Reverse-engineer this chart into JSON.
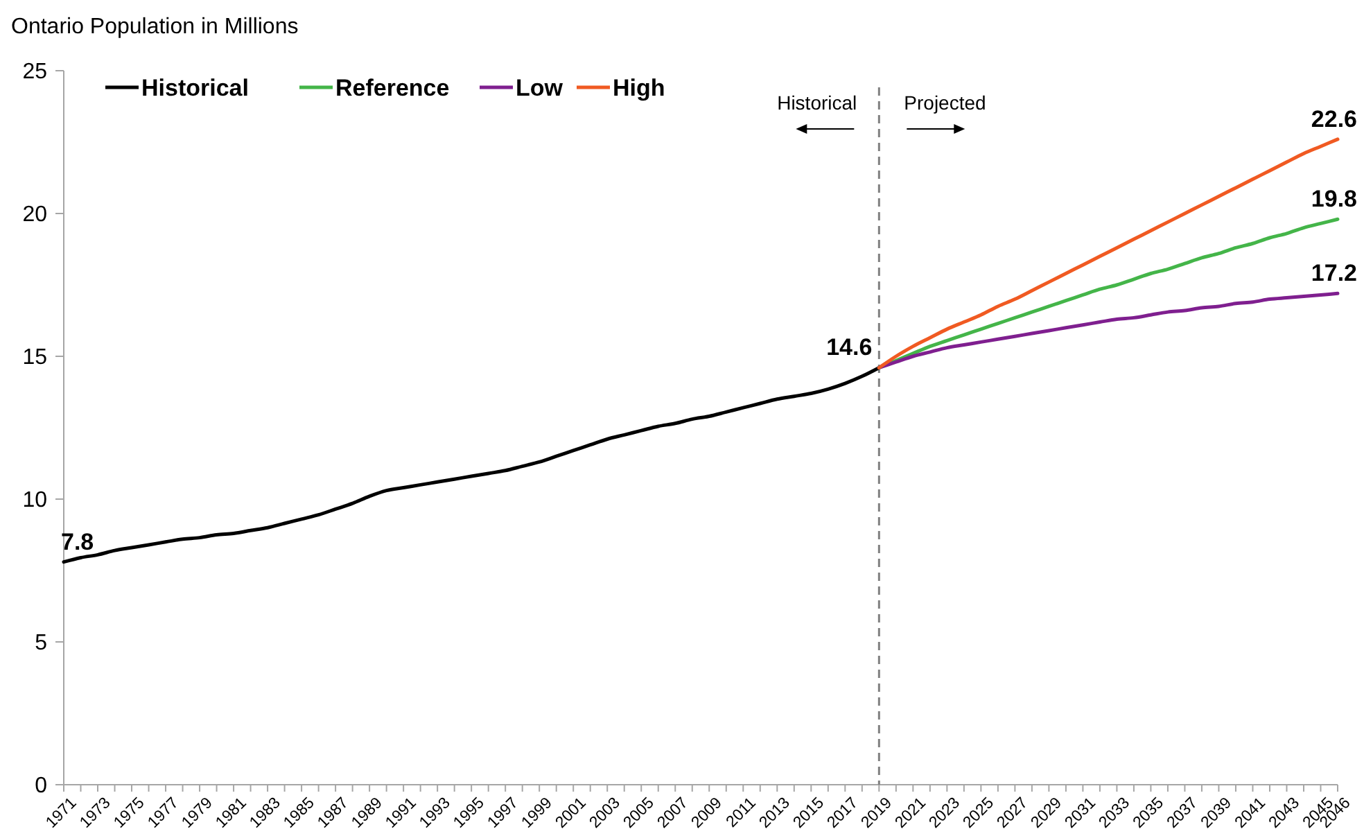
{
  "chart_data": {
    "type": "line",
    "title": "Ontario Population in Millions",
    "categories": [
      "1971",
      null,
      "1973",
      null,
      "1975",
      null,
      "1977",
      null,
      "1979",
      null,
      "1981",
      null,
      "1983",
      null,
      "1985",
      null,
      "1987",
      null,
      "1989",
      null,
      "1991",
      null,
      "1993",
      null,
      "1995",
      null,
      "1997",
      null,
      "1999",
      null,
      "2001",
      null,
      "2003",
      null,
      "2005",
      null,
      "2007",
      null,
      "2009",
      null,
      "2011",
      null,
      "2013",
      null,
      "2015",
      null,
      "2017",
      null,
      "2019",
      null,
      "2021",
      null,
      "2023",
      null,
      "2025",
      null,
      "2027",
      null,
      "2029",
      null,
      "2031",
      null,
      "2033",
      null,
      "2035",
      null,
      "2037",
      null,
      "2039",
      null,
      "2041",
      null,
      "2043",
      null,
      "2045",
      "2046"
    ],
    "series": [
      {
        "name": "Historical",
        "color": "#000000",
        "values": [
          7.8,
          7.95,
          8.05,
          8.2,
          8.3,
          8.4,
          8.5,
          8.6,
          8.65,
          8.75,
          8.8,
          8.9,
          9.0,
          9.15,
          9.3,
          9.45,
          9.65,
          9.85,
          10.1,
          10.3,
          10.4,
          10.5,
          10.6,
          10.7,
          10.8,
          10.9,
          11.0,
          11.15,
          11.3,
          11.5,
          11.7,
          11.9,
          12.1,
          12.25,
          12.4,
          12.55,
          12.65,
          12.8,
          12.9,
          13.05,
          13.2,
          13.35,
          13.5,
          13.6,
          13.7,
          13.85,
          14.05,
          14.3,
          14.6,
          null,
          null,
          null,
          null,
          null,
          null,
          null,
          null,
          null,
          null,
          null,
          null,
          null,
          null,
          null,
          null,
          null,
          null,
          null,
          null,
          null,
          null,
          null,
          null,
          null,
          null,
          null
        ],
        "value_labels": [
          "7.8",
          null,
          null,
          null,
          null,
          null,
          null,
          null,
          null,
          null,
          null,
          null,
          null,
          null,
          null,
          null,
          null,
          null,
          null,
          null,
          null,
          null,
          null,
          null,
          null,
          null,
          null,
          null,
          null,
          null,
          null,
          null,
          null,
          null,
          null,
          null,
          null,
          null,
          null,
          null,
          null,
          null,
          null,
          null,
          null,
          null,
          null,
          null,
          "14.6",
          null,
          null,
          null,
          null,
          null,
          null,
          null,
          null,
          null,
          null,
          null,
          null,
          null,
          null,
          null,
          null,
          null,
          null,
          null,
          null,
          null,
          null,
          null,
          null,
          null,
          null,
          null
        ]
      },
      {
        "name": "Reference",
        "color": "#44b549",
        "values": [
          null,
          null,
          null,
          null,
          null,
          null,
          null,
          null,
          null,
          null,
          null,
          null,
          null,
          null,
          null,
          null,
          null,
          null,
          null,
          null,
          null,
          null,
          null,
          null,
          null,
          null,
          null,
          null,
          null,
          null,
          null,
          null,
          null,
          null,
          null,
          null,
          null,
          null,
          null,
          null,
          null,
          null,
          null,
          null,
          null,
          null,
          null,
          null,
          14.6,
          14.85,
          15.1,
          15.35,
          15.55,
          15.75,
          15.95,
          16.15,
          16.35,
          16.55,
          16.75,
          16.95,
          17.15,
          17.35,
          17.5,
          17.7,
          17.9,
          18.05,
          18.25,
          18.45,
          18.6,
          18.8,
          18.95,
          19.15,
          19.3,
          19.5,
          19.65,
          19.8
        ],
        "value_labels": [
          null,
          null,
          null,
          null,
          null,
          null,
          null,
          null,
          null,
          null,
          null,
          null,
          null,
          null,
          null,
          null,
          null,
          null,
          null,
          null,
          null,
          null,
          null,
          null,
          null,
          null,
          null,
          null,
          null,
          null,
          null,
          null,
          null,
          null,
          null,
          null,
          null,
          null,
          null,
          null,
          null,
          null,
          null,
          null,
          null,
          null,
          null,
          null,
          null,
          null,
          null,
          null,
          null,
          null,
          null,
          null,
          null,
          null,
          null,
          null,
          null,
          null,
          null,
          null,
          null,
          null,
          null,
          null,
          null,
          null,
          null,
          null,
          null,
          null,
          null,
          "19.8"
        ]
      },
      {
        "name": "Low",
        "color": "#7f1f8f",
        "values": [
          null,
          null,
          null,
          null,
          null,
          null,
          null,
          null,
          null,
          null,
          null,
          null,
          null,
          null,
          null,
          null,
          null,
          null,
          null,
          null,
          null,
          null,
          null,
          null,
          null,
          null,
          null,
          null,
          null,
          null,
          null,
          null,
          null,
          null,
          null,
          null,
          null,
          null,
          null,
          null,
          null,
          null,
          null,
          null,
          null,
          null,
          null,
          null,
          14.6,
          14.8,
          15.0,
          15.15,
          15.3,
          15.4,
          15.5,
          15.6,
          15.7,
          15.8,
          15.9,
          16.0,
          16.1,
          16.2,
          16.3,
          16.35,
          16.45,
          16.55,
          16.6,
          16.7,
          16.75,
          16.85,
          16.9,
          17.0,
          17.05,
          17.1,
          17.15,
          17.2
        ],
        "value_labels": [
          null,
          null,
          null,
          null,
          null,
          null,
          null,
          null,
          null,
          null,
          null,
          null,
          null,
          null,
          null,
          null,
          null,
          null,
          null,
          null,
          null,
          null,
          null,
          null,
          null,
          null,
          null,
          null,
          null,
          null,
          null,
          null,
          null,
          null,
          null,
          null,
          null,
          null,
          null,
          null,
          null,
          null,
          null,
          null,
          null,
          null,
          null,
          null,
          null,
          null,
          null,
          null,
          null,
          null,
          null,
          null,
          null,
          null,
          null,
          null,
          null,
          null,
          null,
          null,
          null,
          null,
          null,
          null,
          null,
          null,
          null,
          null,
          null,
          null,
          null,
          "17.2"
        ]
      },
      {
        "name": "High",
        "color": "#f05a22",
        "values": [
          null,
          null,
          null,
          null,
          null,
          null,
          null,
          null,
          null,
          null,
          null,
          null,
          null,
          null,
          null,
          null,
          null,
          null,
          null,
          null,
          null,
          null,
          null,
          null,
          null,
          null,
          null,
          null,
          null,
          null,
          null,
          null,
          null,
          null,
          null,
          null,
          null,
          null,
          null,
          null,
          null,
          null,
          null,
          null,
          null,
          null,
          null,
          null,
          14.6,
          15.0,
          15.35,
          15.65,
          15.95,
          16.2,
          16.45,
          16.75,
          17.0,
          17.3,
          17.6,
          17.9,
          18.2,
          18.5,
          18.8,
          19.1,
          19.4,
          19.7,
          20.0,
          20.3,
          20.6,
          20.9,
          21.2,
          21.5,
          21.8,
          22.1,
          22.35,
          22.6
        ],
        "value_labels": [
          null,
          null,
          null,
          null,
          null,
          null,
          null,
          null,
          null,
          null,
          null,
          null,
          null,
          null,
          null,
          null,
          null,
          null,
          null,
          null,
          null,
          null,
          null,
          null,
          null,
          null,
          null,
          null,
          null,
          null,
          null,
          null,
          null,
          null,
          null,
          null,
          null,
          null,
          null,
          null,
          null,
          null,
          null,
          null,
          null,
          null,
          null,
          null,
          null,
          null,
          null,
          null,
          null,
          null,
          null,
          null,
          null,
          null,
          null,
          null,
          null,
          null,
          null,
          null,
          null,
          null,
          null,
          null,
          null,
          null,
          null,
          null,
          null,
          null,
          null,
          "22.6"
        ]
      }
    ],
    "ylim": [
      0,
      25
    ],
    "yticks": [
      0,
      5,
      10,
      15,
      20,
      25
    ],
    "grid": false,
    "legend": "top left",
    "marker": "none",
    "line_style": "solid",
    "ref_lines": [
      {
        "axis": "x",
        "value": "2019",
        "color": "#808080",
        "line_style": "dashed"
      }
    ],
    "annotations": [
      "Historical",
      "Projected"
    ]
  }
}
